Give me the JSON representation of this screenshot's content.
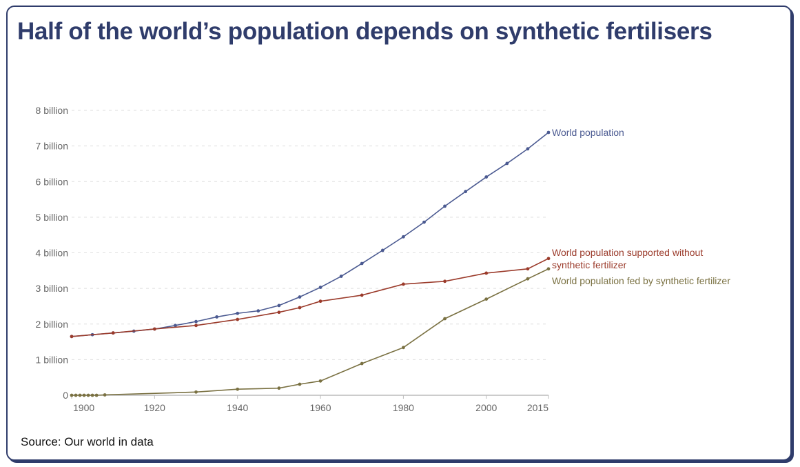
{
  "title": "Half of the world’s population depends on synthetic fertilisers",
  "source": "Source: Our world in data",
  "chart_data": {
    "type": "line",
    "title": "",
    "xlabel": "",
    "ylabel": "",
    "xlim": [
      1900,
      2015
    ],
    "ylim": [
      0,
      8
    ],
    "x_ticks": [
      1900,
      1920,
      1940,
      1960,
      1980,
      2000,
      2015
    ],
    "x_tick_labels": [
      "1900",
      "1920",
      "1940",
      "1960",
      "1980",
      "2000",
      "2015"
    ],
    "y_ticks": [
      0,
      1,
      2,
      3,
      4,
      5,
      6,
      7,
      8
    ],
    "y_tick_labels": [
      "0",
      "1 billion",
      "2 billion",
      "3 billion",
      "4 billion",
      "5 billion",
      "6 billion",
      "7 billion",
      "8 billion"
    ],
    "grid": "horizontal dashed",
    "legend": "inline labels at line ends (right)",
    "units": "billion",
    "series": [
      {
        "name": "World population",
        "color": "#4b5a91",
        "x": [
          1900,
          1905,
          1910,
          1915,
          1920,
          1925,
          1930,
          1935,
          1940,
          1945,
          1950,
          1955,
          1960,
          1965,
          1970,
          1975,
          1980,
          1985,
          1990,
          1995,
          2000,
          2005,
          2010,
          2015
        ],
        "values": [
          1.65,
          1.7,
          1.75,
          1.8,
          1.86,
          1.96,
          2.07,
          2.2,
          2.3,
          2.37,
          2.52,
          2.76,
          3.03,
          3.34,
          3.7,
          4.07,
          4.45,
          4.86,
          5.31,
          5.72,
          6.13,
          6.51,
          6.92,
          7.38
        ]
      },
      {
        "name": "World population supported without synthetic fertilizer",
        "color": "#9b3b2b",
        "x": [
          1900,
          1910,
          1920,
          1930,
          1940,
          1950,
          1955,
          1960,
          1970,
          1980,
          1990,
          2000,
          2010,
          2015
        ],
        "values": [
          1.65,
          1.75,
          1.86,
          1.96,
          2.13,
          2.33,
          2.46,
          2.64,
          2.81,
          3.12,
          3.2,
          3.43,
          3.55,
          3.84
        ]
      },
      {
        "name": "World population fed by synthetic fertilizer",
        "color": "#7a7142",
        "x": [
          1900,
          1901,
          1902,
          1903,
          1904,
          1905,
          1906,
          1908,
          1930,
          1940,
          1950,
          1955,
          1960,
          1970,
          1980,
          1990,
          2000,
          2010,
          2015
        ],
        "values": [
          0,
          0,
          0,
          0,
          0,
          0,
          0,
          0.01,
          0.09,
          0.17,
          0.2,
          0.31,
          0.4,
          0.89,
          1.34,
          2.15,
          2.7,
          3.27,
          3.55
        ]
      }
    ],
    "series_labels": [
      {
        "lines": [
          "World population"
        ]
      },
      {
        "lines": [
          "World population supported without",
          "synthetic fertilizer"
        ]
      },
      {
        "lines": [
          "World population fed by synthetic fertilizer"
        ]
      }
    ]
  }
}
